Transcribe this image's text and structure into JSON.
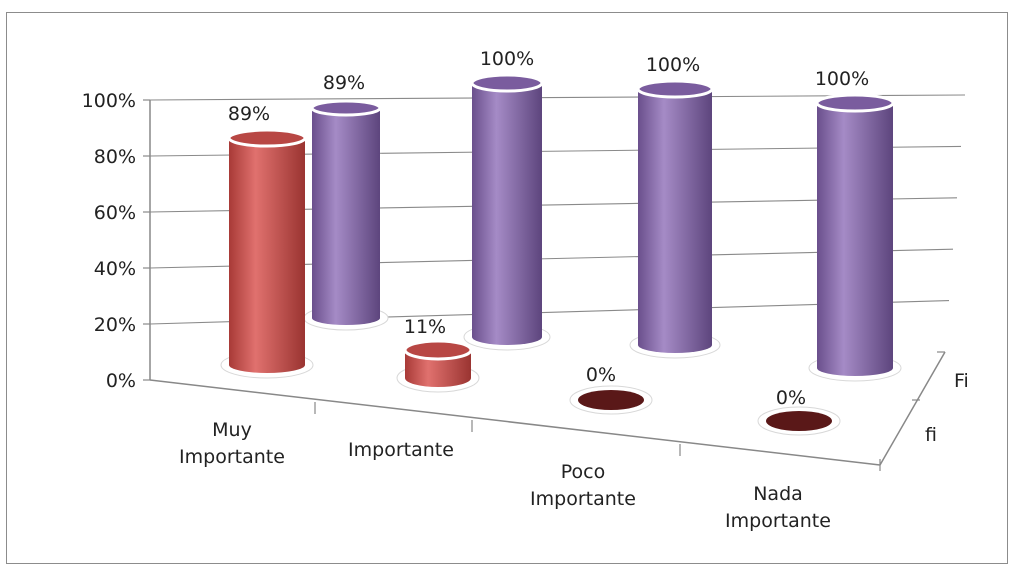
{
  "chart_data": {
    "type": "bar",
    "categories": [
      [
        "Muy",
        "Importante"
      ],
      [
        "Importante"
      ],
      [
        "Poco",
        "Importante"
      ],
      [
        "Nada",
        "Importante"
      ]
    ],
    "series": [
      {
        "name": "fi",
        "values": [
          89,
          11,
          0,
          0
        ],
        "labels": [
          "89%",
          "11%",
          "0%",
          "0%"
        ]
      },
      {
        "name": "Fi",
        "values": [
          89,
          100,
          100,
          100
        ],
        "labels": [
          "89%",
          "100%",
          "100%",
          "100%"
        ]
      }
    ],
    "y_ticks": [
      "0%",
      "20%",
      "40%",
      "60%",
      "80%",
      "100%"
    ],
    "ylim": [
      0,
      100
    ],
    "depth_labels": [
      "Fi",
      "fi"
    ],
    "colors": {
      "fi": "#c0504d",
      "Fi": "#8064a2",
      "fi_zero": "#5a1818"
    },
    "grid": true,
    "legend": "none"
  }
}
